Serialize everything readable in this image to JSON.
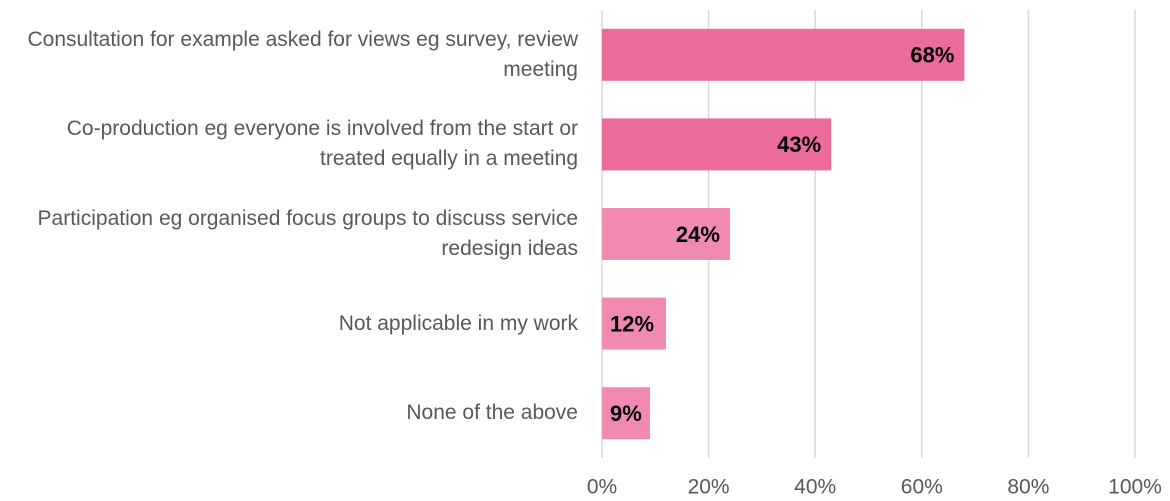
{
  "chart_data": {
    "type": "bar",
    "orientation": "horizontal",
    "categories": [
      "Consultation for example asked for views eg survey, review meeting",
      "Co-production eg everyone is involved from the start or treated equally in a meeting",
      "Participation eg organised focus groups to discuss service redesign ideas",
      "Not applicable in my work",
      "None of the above"
    ],
    "values": [
      68,
      43,
      24,
      12,
      9
    ],
    "value_labels": [
      "68%",
      "43%",
      "24%",
      "12%",
      "9%"
    ],
    "colors": [
      "#eb6b9d",
      "#eb6b9d",
      "#f08ab2",
      "#f08ab2",
      "#f08ab2"
    ],
    "xlim": [
      0,
      100
    ],
    "xticks": [
      {
        "value": 0,
        "label": "0%"
      },
      {
        "value": 20,
        "label": "20%"
      },
      {
        "value": 40,
        "label": "40%"
      },
      {
        "value": 60,
        "label": "60%"
      },
      {
        "value": 80,
        "label": "80%"
      },
      {
        "value": 100,
        "label": "100%"
      }
    ],
    "grid": true
  }
}
